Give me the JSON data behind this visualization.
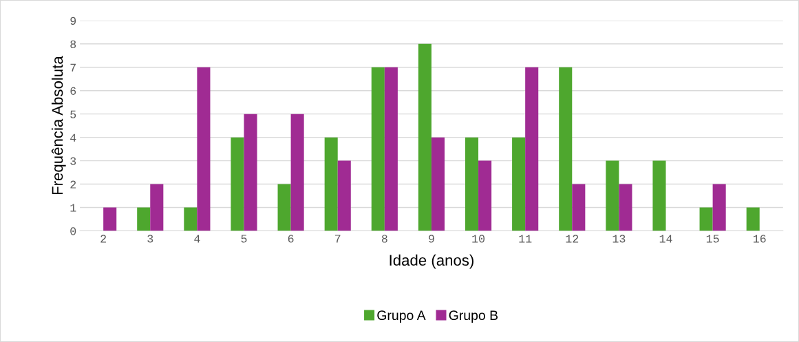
{
  "chart_data": {
    "type": "bar",
    "xlabel": "Idade (anos)",
    "ylabel": "Frequência Absoluta",
    "categories": [
      "2",
      "3",
      "4",
      "5",
      "6",
      "7",
      "8",
      "9",
      "10",
      "11",
      "12",
      "13",
      "14",
      "15",
      "16"
    ],
    "series": [
      {
        "name": "Grupo A",
        "color": "#4ea72e",
        "values": [
          0,
          1,
          1,
          4,
          2,
          4,
          7,
          8,
          4,
          4,
          7,
          3,
          3,
          1,
          1
        ]
      },
      {
        "name": "Grupo B",
        "color": "#a02b93",
        "values": [
          1,
          2,
          7,
          5,
          5,
          3,
          7,
          4,
          3,
          7,
          2,
          2,
          0,
          2,
          0
        ]
      }
    ],
    "ylim": [
      0,
      9
    ],
    "yticks": [
      0,
      1,
      2,
      3,
      4,
      5,
      6,
      7,
      8,
      9
    ],
    "grid": "y",
    "legend": "bottom"
  }
}
